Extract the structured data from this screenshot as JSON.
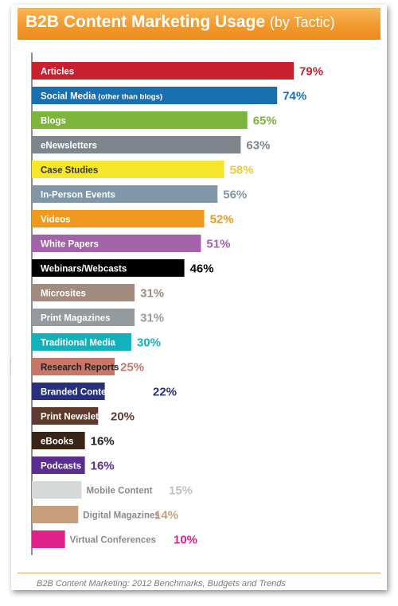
{
  "header": {
    "title_main": "B2B Content Marketing Usage",
    "title_sub": "(by Tactic)"
  },
  "footer": {
    "source": "B2B Content Marketing: 2012 Benchmarks, Budgets and Trends"
  },
  "colors": {
    "title_bar": "#f29a2e"
  },
  "chart_data": {
    "type": "bar",
    "orientation": "horizontal",
    "title": "B2B Content Marketing Usage (by Tactic)",
    "xlim": [
      0,
      100
    ],
    "grid": false,
    "categories": [
      "Articles",
      "Social Media (other than blogs)",
      "Blogs",
      "eNewsletters",
      "Case Studies",
      "In-Person Events",
      "Videos",
      "White Papers",
      "Webinars/Webcasts",
      "Microsites",
      "Print Magazines",
      "Traditional Media",
      "Research Reports",
      "Branded Content Tools",
      "Print Newsletters",
      "eBooks",
      "Podcasts",
      "Mobile Content",
      "Digital Magazines",
      "Virtual Conferences"
    ],
    "values": [
      79,
      74,
      65,
      63,
      58,
      56,
      52,
      51,
      46,
      31,
      31,
      30,
      25,
      22,
      20,
      16,
      16,
      15,
      14,
      10
    ],
    "value_labels": [
      "79%",
      "74%",
      "65%",
      "63%",
      "58%",
      "56%",
      "52%",
      "51%",
      "46%",
      "31%",
      "31%",
      "30%",
      "25%",
      "22%",
      "20%",
      "16%",
      "16%",
      "15%",
      "14%",
      "10%"
    ],
    "bar_colors": [
      "#c8202f",
      "#1a6fb0",
      "#7db43c",
      "#7e858d",
      "#f5e62a",
      "#7f97a8",
      "#ef9a1e",
      "#a263a9",
      "#000000",
      "#a28a7e",
      "#949a9e",
      "#12b1bc",
      "#c77667",
      "#27307f",
      "#5e3b2c",
      "#3a2417",
      "#5a2d8f",
      "#d7d8d8",
      "#c5a07b",
      "#e0218a"
    ],
    "label_colors": [
      "#ffffff",
      "#ffffff",
      "#ffffff",
      "#ffffff",
      "#333333",
      "#ffffff",
      "#ffffff",
      "#ffffff",
      "#ffffff",
      "#ffffff",
      "#ffffff",
      "#ffffff",
      "#222222",
      "#ffffff",
      "#ffffff",
      "#ffffff",
      "#ffffff",
      "#8a8a8a",
      "#8a8a8a",
      "#8a8a8a"
    ],
    "value_colors": [
      "#c8202f",
      "#1a6fb0",
      "#7db43c",
      "#7e858d",
      "#f0c830",
      "#7f97a8",
      "#ef9a1e",
      "#a263a9",
      "#000000",
      "#a28a7e",
      "#949a9e",
      "#12b1bc",
      "#c77667",
      "#27307f",
      "#5e3b2c",
      "#222222",
      "#5a2d8f",
      "#bfc0c0",
      "#c5a07b",
      "#e0218a"
    ]
  }
}
